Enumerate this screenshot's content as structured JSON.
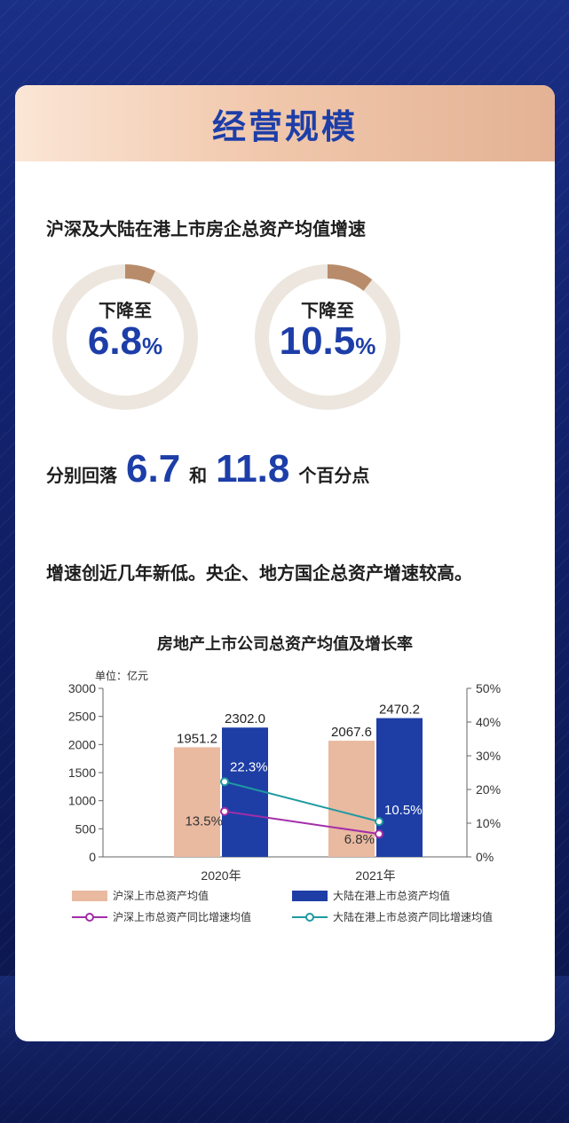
{
  "header": {
    "title": "经营规模"
  },
  "intro": {
    "subtitle": "沪深及大陆在港上市房企总资产均值增速"
  },
  "donuts": [
    {
      "label": "下降至",
      "value": "6.8",
      "unit": "%",
      "arc_fraction": 0.068
    },
    {
      "label": "下降至",
      "value": "10.5",
      "unit": "%",
      "arc_fraction": 0.105
    }
  ],
  "recover": {
    "prefix": "分别回落",
    "v1": "6.7",
    "mid": "和",
    "v2": "11.8",
    "suffix": "个百分点"
  },
  "note": "增速创近几年新低。央企、地方国企总资产增速较高。",
  "colors": {
    "accent_blue": "#1d3ea8",
    "bar_light": "#e9b9a0",
    "bar_dark": "#1e3ea6",
    "line_purple": "#a22ea8",
    "line_teal": "#1e9aa0",
    "donut_track": "#ece6de",
    "donut_arc": "#b88c6a"
  },
  "chart_data": {
    "type": "bar",
    "title": "房地产上市公司总资产均值及增长率",
    "unit_label": "单位：亿元",
    "categories": [
      "2020年",
      "2021年"
    ],
    "series": [
      {
        "name": "沪深上市总资产均值",
        "kind": "bar",
        "axis": "left",
        "values": [
          1951.2,
          2067.6
        ],
        "labels": [
          "1951.2",
          "2067.6"
        ]
      },
      {
        "name": "大陆在港上市总资产均值",
        "kind": "bar",
        "axis": "left",
        "values": [
          2302.0,
          2470.2
        ],
        "labels": [
          "2302.0",
          "2470.2"
        ]
      },
      {
        "name": "沪深上市总资产同比增速均值",
        "kind": "line",
        "axis": "right",
        "values": [
          13.5,
          6.8
        ],
        "labels": [
          "13.5%",
          "6.8%"
        ]
      },
      {
        "name": "大陆在港上市总资产同比增速均值",
        "kind": "line",
        "axis": "right",
        "values": [
          22.3,
          10.5
        ],
        "labels": [
          "22.3%",
          "10.5%"
        ]
      }
    ],
    "ylim_left": [
      0,
      3000
    ],
    "yticks_left": [
      "0",
      "500",
      "1000",
      "1500",
      "2000",
      "2500",
      "3000"
    ],
    "ylim_right": [
      0,
      50
    ],
    "yticks_right": [
      "0%",
      "10%",
      "20%",
      "30%",
      "40%",
      "50%"
    ],
    "legend": "bottom"
  }
}
